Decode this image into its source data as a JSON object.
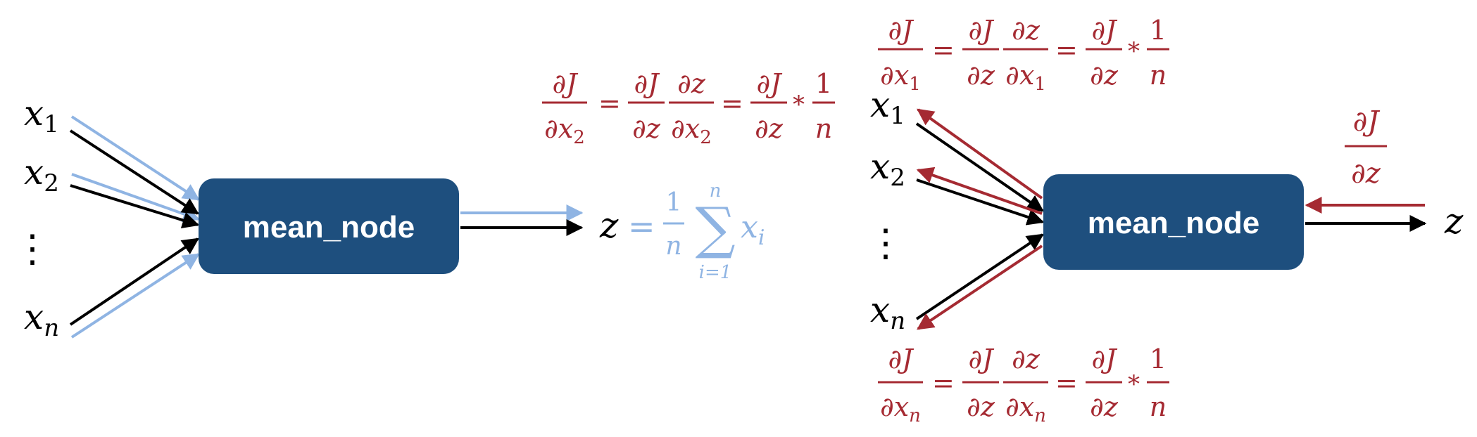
{
  "colors": {
    "forward": "#8fb4e3",
    "backward": "#a52a32",
    "edge": "#000000",
    "node_fill": "#1e4f7e",
    "node_text": "#ffffff",
    "text": "#000000"
  },
  "forward": {
    "node_label": "mean_node",
    "inputs": [
      {
        "base": "x",
        "sub": "1"
      },
      {
        "base": "x",
        "sub": "2"
      },
      {
        "base": "x",
        "sub": "n"
      }
    ],
    "vdots": "⋮",
    "output": "z",
    "formula": {
      "equals": "=",
      "num": "1",
      "den": "n",
      "sigma": "∑",
      "sigma_top": "n",
      "sigma_bottom": "i=1",
      "term_base": "x",
      "term_sub": "i"
    },
    "gradient_x2": {
      "d": "∂",
      "J": "J",
      "z": "z",
      "x": "x",
      "sub": "2",
      "equals": "=",
      "times": "*",
      "one": "1",
      "n": "n"
    }
  },
  "backward": {
    "node_label": "mean_node",
    "inputs": [
      {
        "base": "x",
        "sub": "1"
      },
      {
        "base": "x",
        "sub": "2"
      },
      {
        "base": "x",
        "sub": "n"
      }
    ],
    "vdots": "⋮",
    "output": "z",
    "upstream": {
      "d": "∂",
      "J": "J",
      "z": "z"
    },
    "gradient_x1": {
      "d": "∂",
      "J": "J",
      "z": "z",
      "x": "x",
      "sub": "1",
      "equals": "=",
      "times": "*",
      "one": "1",
      "n": "n"
    },
    "gradient_xn": {
      "d": "∂",
      "J": "J",
      "z": "z",
      "x": "x",
      "sub": "n",
      "equals": "=",
      "times": "*",
      "one": "1",
      "n": "n"
    }
  }
}
